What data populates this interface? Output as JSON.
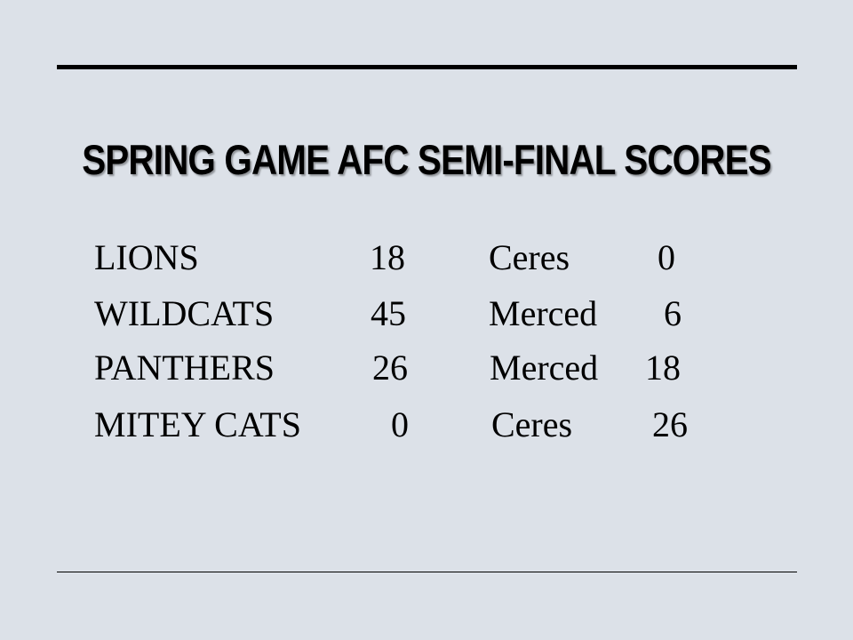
{
  "title": "SPRING GAME AFC SEMI-FINAL SCORES",
  "games": [
    {
      "team": "LIONS",
      "score": "18",
      "opponent": "Ceres",
      "opponent_score": "0"
    },
    {
      "team": "WILDCATS",
      "score": "45",
      "opponent": "Merced",
      "opponent_score": "6"
    },
    {
      "team": "PANTHERS",
      "score": "26",
      "opponent": "Merced",
      "opponent_score": "18"
    },
    {
      "team": "MITEY CATS",
      "score": "0",
      "opponent": "Ceres",
      "opponent_score": "26"
    }
  ]
}
